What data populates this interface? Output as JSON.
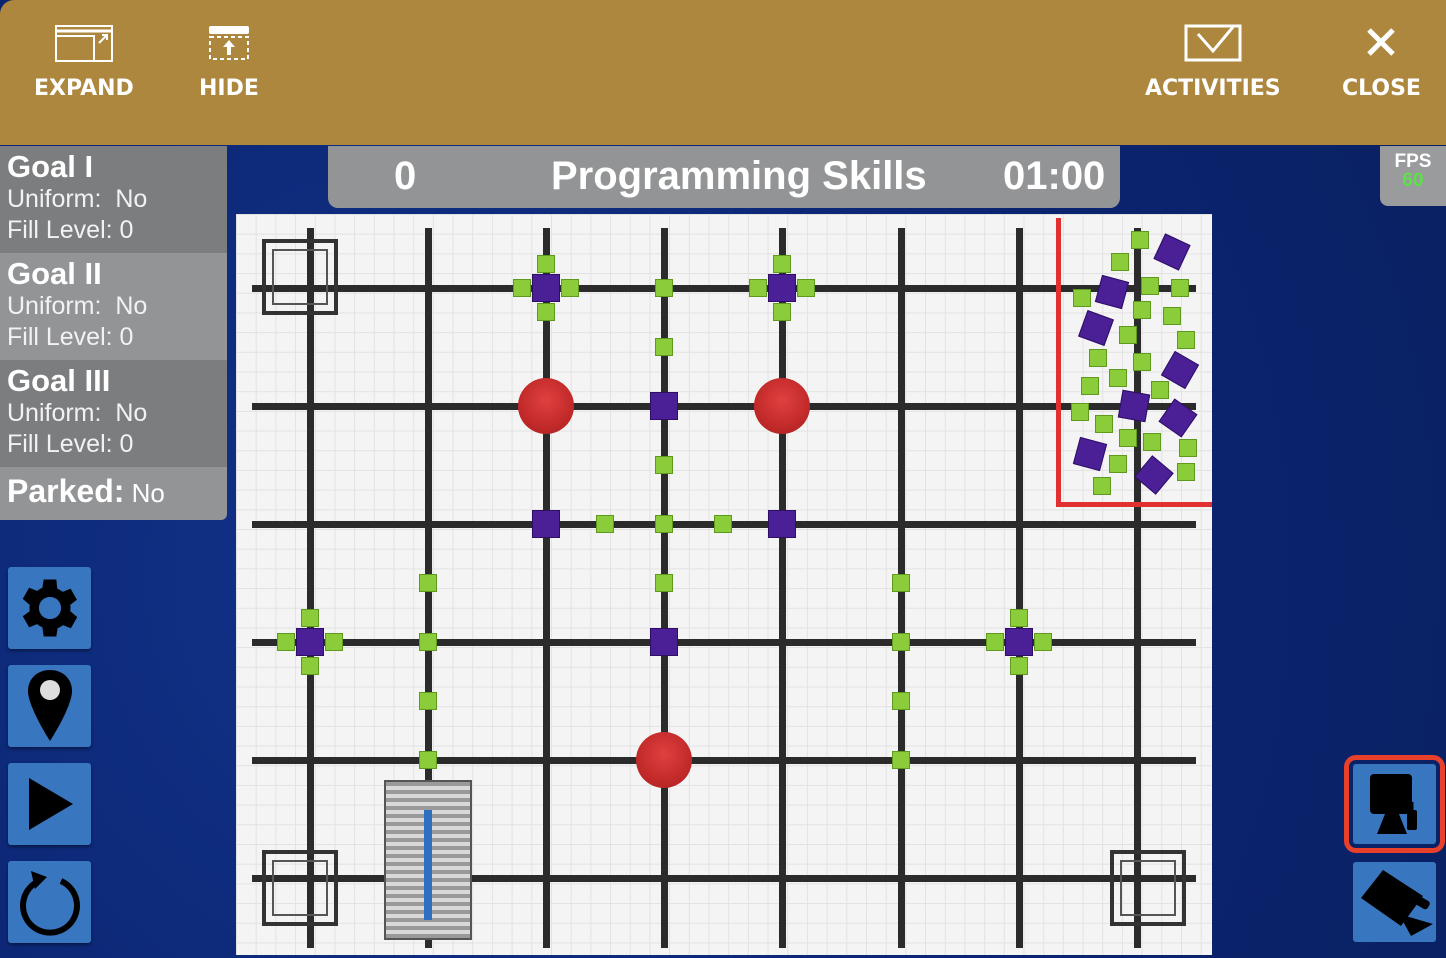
{
  "toolbar": {
    "expand": "EXPAND",
    "hide": "HIDE",
    "activities": "ACTIVITIES",
    "close": "CLOSE"
  },
  "goals": [
    {
      "title": "Goal I",
      "uniform_label": "Uniform:",
      "uniform": "No",
      "fill_label": "Fill Level:",
      "fill": "0"
    },
    {
      "title": "Goal II",
      "uniform_label": "Uniform:",
      "uniform": "No",
      "fill_label": "Fill Level:",
      "fill": "0"
    },
    {
      "title": "Goal III",
      "uniform_label": "Uniform:",
      "uniform": "No",
      "fill_label": "Fill Level:",
      "fill": "0"
    }
  ],
  "parked": {
    "label": "Parked:",
    "value": "No"
  },
  "scoreboard": {
    "score": "0",
    "mode": "Programming Skills",
    "time": "01:00"
  },
  "fps": {
    "label": "FPS",
    "value": "60"
  },
  "side_buttons": [
    "settings-icon",
    "location-pin-icon",
    "play-icon",
    "reset-icon"
  ],
  "camera_buttons": [
    {
      "icon": "top-camera-icon",
      "selected": true
    },
    {
      "icon": "follow-camera-icon",
      "selected": false
    }
  ],
  "colors": {
    "toolbar": "#ae873f",
    "background": "#0d2a7a",
    "button": "#3877bf",
    "selected_outline": "#e8402a",
    "cube": "#4b1f95",
    "block": "#8bcc3a",
    "ball": "#c22a2a",
    "fps_value": "#5de04a"
  }
}
